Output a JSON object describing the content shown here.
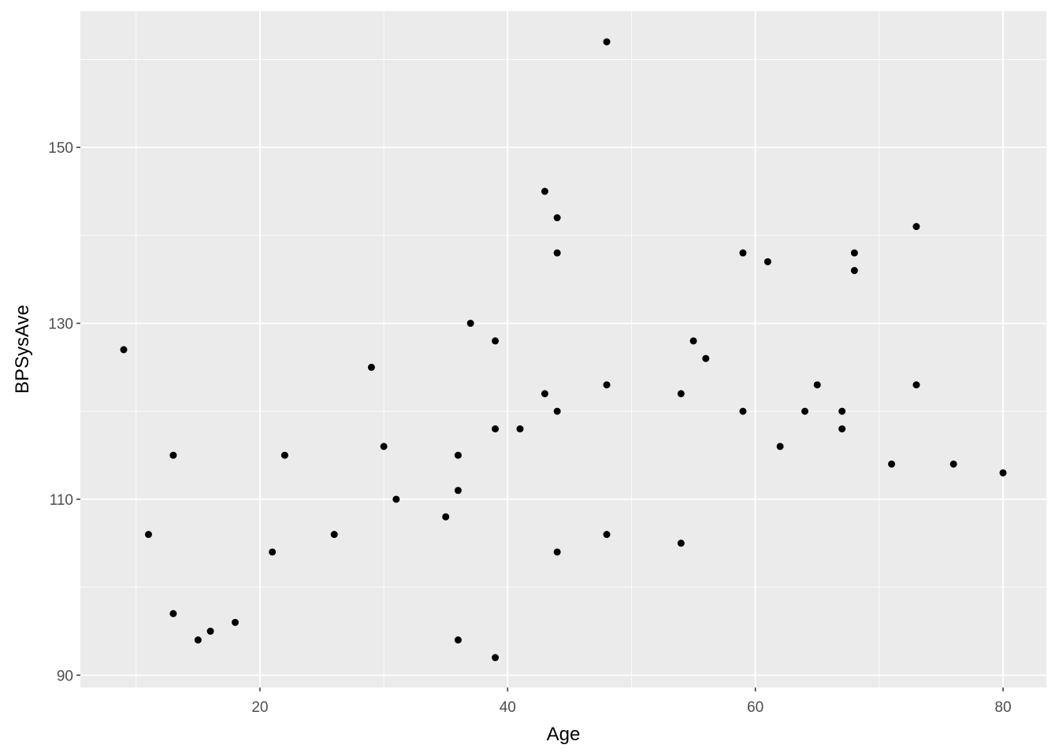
{
  "chart_data": {
    "type": "scatter",
    "title": "",
    "xlabel": "Age",
    "ylabel": "BPSysAve",
    "xlim": [
      5.5,
      83.5
    ],
    "ylim": [
      88.6,
      165.5
    ],
    "x_ticks": [
      20,
      40,
      60,
      80
    ],
    "y_ticks": [
      90,
      110,
      130,
      150
    ],
    "x_minor": [
      10,
      30,
      50,
      70
    ],
    "y_minor": [
      100,
      120,
      140,
      160
    ],
    "grid": true,
    "panel_background": "#ebebeb",
    "point_color": "#000000",
    "points": [
      [
        9,
        127
      ],
      [
        11,
        106
      ],
      [
        13,
        115
      ],
      [
        13,
        97
      ],
      [
        15,
        94
      ],
      [
        16,
        95
      ],
      [
        18,
        96
      ],
      [
        21,
        104
      ],
      [
        22,
        115
      ],
      [
        26,
        106
      ],
      [
        29,
        125
      ],
      [
        30,
        116
      ],
      [
        31,
        110
      ],
      [
        35,
        108
      ],
      [
        36,
        115
      ],
      [
        36,
        111
      ],
      [
        36,
        94
      ],
      [
        37,
        130
      ],
      [
        39,
        128
      ],
      [
        39,
        118
      ],
      [
        39,
        92
      ],
      [
        41,
        118
      ],
      [
        43,
        145
      ],
      [
        43,
        122
      ],
      [
        44,
        142
      ],
      [
        44,
        138
      ],
      [
        44,
        120
      ],
      [
        44,
        104
      ],
      [
        48,
        162
      ],
      [
        48,
        123
      ],
      [
        48,
        106
      ],
      [
        54,
        122
      ],
      [
        54,
        105
      ],
      [
        55,
        128
      ],
      [
        56,
        126
      ],
      [
        59,
        138
      ],
      [
        59,
        120
      ],
      [
        61,
        137
      ],
      [
        62,
        116
      ],
      [
        64,
        120
      ],
      [
        65,
        123
      ],
      [
        67,
        120
      ],
      [
        67,
        118
      ],
      [
        68,
        138
      ],
      [
        68,
        136
      ],
      [
        71,
        114
      ],
      [
        73,
        141
      ],
      [
        73,
        123
      ],
      [
        76,
        114
      ],
      [
        80,
        113
      ]
    ]
  }
}
